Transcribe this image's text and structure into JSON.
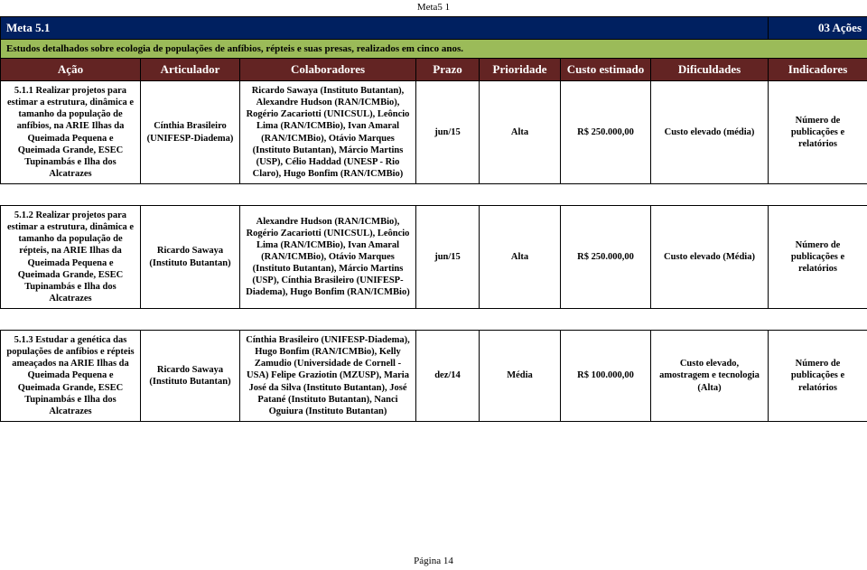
{
  "page_label": "Meta5 1",
  "meta_title": "Meta 5.1",
  "meta_actions": "03 Ações",
  "meta_description": "Estudos detalhados sobre ecologia de populações de anfíbios, répteis e suas presas, realizados em cinco anos.",
  "columns": {
    "c1": "Ação",
    "c2": "Articulador",
    "c3": "Colaboradores",
    "c4": "Prazo",
    "c5": "Prioridade",
    "c6": "Custo estimado",
    "c7": "Dificuldades",
    "c8": "Indicadores"
  },
  "rows": [
    {
      "acao": "5.1.1 Realizar projetos para estimar a estrutura, dinâmica e tamanho da população de anfíbios, na ARIE Ilhas da Queimada Pequena e Queimada Grande, ESEC Tupinambás e Ilha dos Alcatrazes",
      "articulador": "Cínthia Brasileiro (UNIFESP-Diadema)",
      "colaboradores": "Ricardo Sawaya (Instituto Butantan), Alexandre Hudson (RAN/ICMBio), Rogério Zacariotti (UNICSUL), Leôncio Lima (RAN/ICMBio), Ivan Amaral (RAN/ICMBio), Otávio Marques (Instituto Butantan), Márcio Martins (USP), Célio Haddad (UNESP - Rio Claro), Hugo Bonfim (RAN/ICMBio)",
      "prazo": "jun/15",
      "prioridade": "Alta",
      "custo": "R$ 250.000,00",
      "dificuldades": "Custo elevado (média)",
      "indicadores": "Número de publicações e relatórios"
    },
    {
      "acao": "5.1.2 Realizar projetos para estimar a estrutura, dinâmica e tamanho da população de répteis, na ARIE Ilhas da Queimada Pequena e Queimada Grande, ESEC Tupinambás e Ilha dos Alcatrazes",
      "articulador": "Ricardo Sawaya (Instituto Butantan)",
      "colaboradores": "Alexandre Hudson (RAN/ICMBio), Rogério Zacariotti (UNICSUL), Leôncio Lima (RAN/ICMBio), Ivan Amaral (RAN/ICMBio), Otávio Marques (Instituto Butantan), Márcio Martins (USP), Cínthia Brasileiro (UNIFESP-Diadema), Hugo Bonfim (RAN/ICMBio)",
      "prazo": "jun/15",
      "prioridade": "Alta",
      "custo": "R$ 250.000,00",
      "dificuldades": "Custo elevado (Média)",
      "indicadores": "Número de publicações e relatórios"
    },
    {
      "acao": "5.1.3 Estudar a genética das populações de anfíbios e répteis ameaçados na ARIE Ilhas da Queimada Pequena e Queimada Grande, ESEC Tupinambás e Ilha dos Alcatrazes",
      "articulador": "Ricardo Sawaya (Instituto Butantan)",
      "colaboradores": "Cínthia Brasileiro (UNIFESP-Diadema), Hugo Bonfim (RAN/ICMBio), Kelly Zamudio (Universidade de Cornell - USA) Felipe Graziotin (MZUSP), Maria José da Silva (Instituto Butantan), José Patané (Instituto Butantan), Nanci Oguiura (Instituto Butantan)",
      "prazo": "dez/14",
      "prioridade": "Média",
      "custo": "R$ 100.000,00",
      "dificuldades": "Custo elevado, amostragem e tecnologia (Alta)",
      "indicadores": "Número de publicações e relatórios"
    }
  ],
  "footer": "Página 14",
  "colors": {
    "navy": "#002060",
    "green": "#9bbb59",
    "maroon": "#632423"
  }
}
